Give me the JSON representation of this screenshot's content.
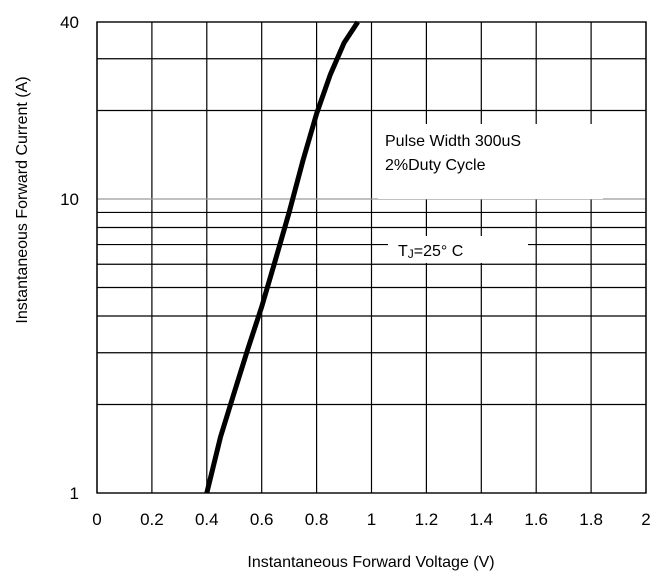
{
  "chart_data": {
    "type": "line",
    "title": "",
    "xlabel": "Instantaneous Forward Voltage (V)",
    "ylabel": "Instantaneous Forward Current (A)",
    "xlim": [
      0,
      2
    ],
    "ylim": [
      1,
      40
    ],
    "yscale": "log",
    "grid": true,
    "x_ticks": [
      "0",
      "0.2",
      "0.4",
      "0.6",
      "0.8",
      "1",
      "1.2",
      "1.4",
      "1.6",
      "1.8",
      "2"
    ],
    "y_ticks": [
      "1",
      "10",
      "40"
    ],
    "series": [
      {
        "x": [
          0.4,
          0.45,
          0.5,
          0.55,
          0.6,
          0.65,
          0.7,
          0.75,
          0.8,
          0.85,
          0.9,
          0.95
        ],
        "y": [
          1.0,
          1.55,
          2.2,
          3.1,
          4.3,
          6.2,
          9.0,
          13.5,
          19.5,
          26.5,
          34.0,
          40.0
        ]
      }
    ],
    "annotations": {
      "pulse": "Pulse Width 300uS",
      "duty": "2%Duty Cycle",
      "tj_main": "T",
      "tj_sub": "J",
      "tj_rest": "=25° C"
    }
  }
}
